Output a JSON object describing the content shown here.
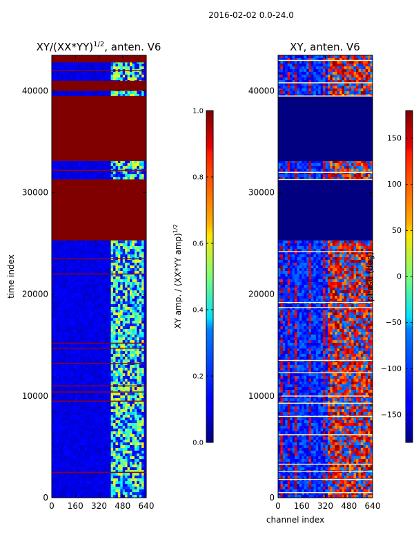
{
  "figure": {
    "suptitle": "2016-02-02 0.0-24.0"
  },
  "chart_data": [
    {
      "type": "heatmap",
      "title_base": "XY/(XX*YY)",
      "title_exp": "1/2",
      "title_tail": ", anten. V6",
      "xlabel": "",
      "ylabel": "time index",
      "xlim": [
        0,
        640
      ],
      "ylim": [
        0,
        43500
      ],
      "xticks": [
        0,
        160,
        320,
        480,
        640
      ],
      "yticks": [
        0,
        10000,
        20000,
        30000,
        40000
      ],
      "colorbar": {
        "label_base": "XY amp. / (XX*YY amp)",
        "label_exp": "1/2",
        "range": [
          0.0,
          1.0
        ],
        "ticks": [
          "0.0",
          "0.2",
          "0.4",
          "0.6",
          "0.8",
          "1.0"
        ],
        "colormap": "jet"
      },
      "background_value": 0.1,
      "saturated_blocks": [
        {
          "t_start": 25300,
          "t_end": 31300,
          "value": 1.0
        },
        {
          "t_start": 33100,
          "t_end": 39500,
          "value": 1.0
        },
        {
          "t_start": 40000,
          "t_end": 41000,
          "value": 1.0
        },
        {
          "t_start": 42800,
          "t_end": 43500,
          "value": 1.0
        }
      ],
      "flag_lines": [
        2500,
        9500,
        10400,
        11000,
        13200,
        14700,
        15200,
        22000,
        23500,
        32200,
        42000
      ],
      "high_channel_band": {
        "ch_start": 400,
        "ch_end": 620,
        "value_range": [
          0.3,
          0.65
        ]
      }
    },
    {
      "type": "heatmap",
      "title": "XY, anten. V6",
      "xlabel": "channel index",
      "ylabel": "",
      "xlim": [
        0,
        640
      ],
      "ylim": [
        0,
        43500
      ],
      "xticks": [
        0,
        160,
        320,
        480,
        640
      ],
      "yticks": [
        0,
        10000,
        20000,
        30000,
        40000
      ],
      "colorbar": {
        "label": "phase (deg)",
        "range": [
          -180,
          180
        ],
        "ticks": [
          "−150",
          "−100",
          "−50",
          "0",
          "50",
          "100",
          "150"
        ],
        "colormap": "jet"
      },
      "background_value": -120,
      "flat_blocks": [
        {
          "t_start": 25300,
          "t_end": 31300,
          "value": -180
        },
        {
          "t_start": 33100,
          "t_end": 39500,
          "value": -180
        }
      ],
      "flag_lines": [
        500,
        1800,
        2600,
        3300,
        6200,
        8000,
        9300,
        10000,
        12300,
        13500,
        18700,
        19200,
        24200,
        31300,
        32000,
        39500,
        40800,
        43000
      ],
      "high_channel_band": {
        "ch_start": 330,
        "ch_end": 640,
        "value_range": [
          80,
          180
        ]
      }
    }
  ]
}
